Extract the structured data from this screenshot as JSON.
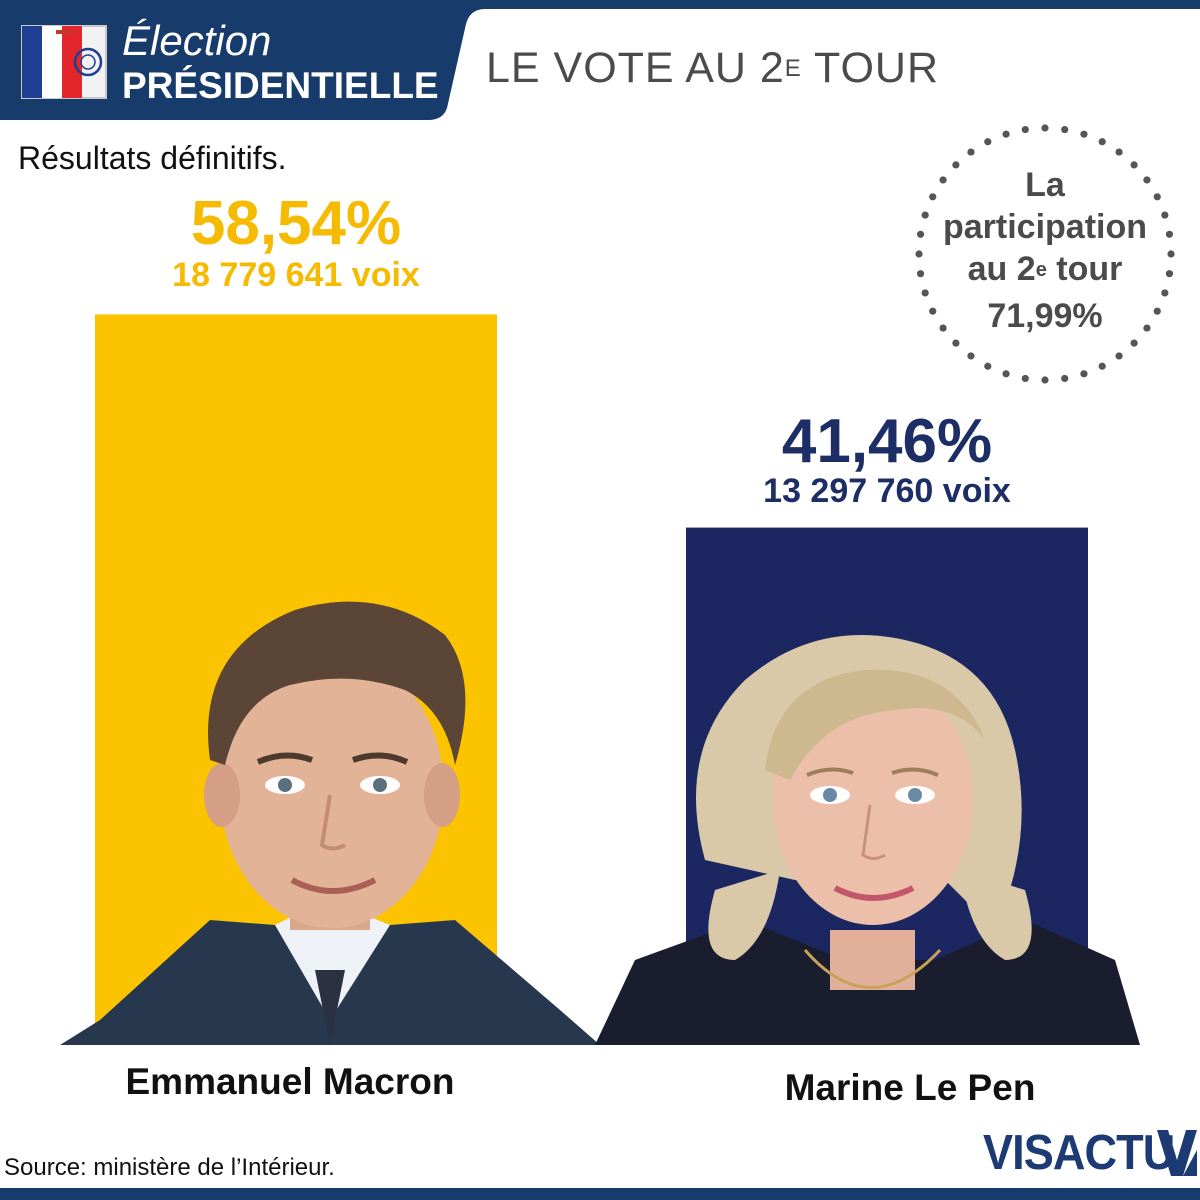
{
  "header": {
    "brand_line1": "Élection",
    "brand_line2": "PRÉSIDENTIELLE",
    "title_main": "LE VOTE AU 2",
    "title_sup": "E",
    "title_end": " TOUR",
    "logo_icon": "ballot-box-flag-icon"
  },
  "subtitle": "Résultats définitifs.",
  "participation": {
    "line1": "La",
    "line2": "participation",
    "line3_a": "au 2",
    "line3_sup": "e",
    "line3_b": " tour",
    "value": "71,99%"
  },
  "chart_data": {
    "type": "bar",
    "categories": [
      "Emmanuel Macron",
      "Marine Le Pen"
    ],
    "values": [
      58.54,
      41.46
    ],
    "value_labels": [
      "58,54%",
      "41,46%"
    ],
    "votes": [
      18779641,
      13297760
    ],
    "vote_labels": [
      "18 779 641 voix",
      "13 297 760 voix"
    ],
    "colors": [
      "#fbc300",
      "#1c2761"
    ],
    "title": "",
    "subtitle": "Résultats définitifs.",
    "xlabel": "",
    "ylabel": "",
    "grid": false,
    "legend": "none"
  },
  "footer": {
    "source": "Source: ministère de l’Intérieur.",
    "brand": "VISACTU"
  }
}
